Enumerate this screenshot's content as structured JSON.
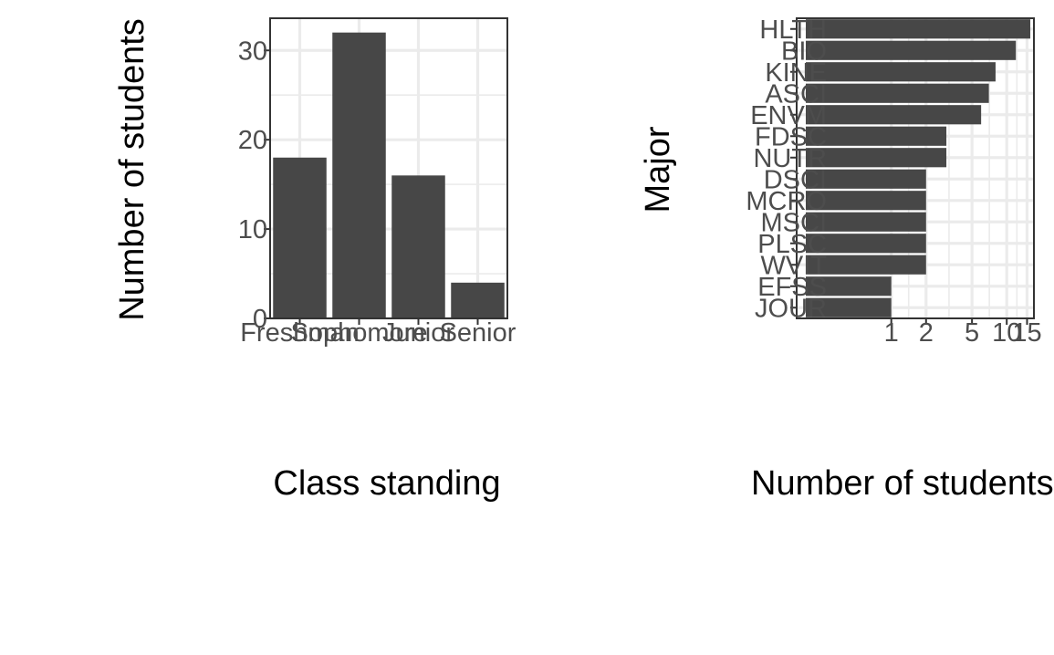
{
  "chart_data": [
    {
      "type": "bar",
      "orientation": "vertical",
      "categories": [
        "Freshman",
        "Sophomore",
        "Junior",
        "Senior"
      ],
      "values": [
        18,
        32,
        16,
        4
      ],
      "title": "",
      "xlabel": "Class standing",
      "ylabel": "Number of students",
      "ylim": [
        0,
        33.6
      ],
      "yticks": [
        0,
        10,
        20,
        30
      ],
      "y_tick_labels": [
        "0",
        "10",
        "20",
        "30"
      ],
      "grid": true,
      "bar_color": "#474747"
    },
    {
      "type": "bar",
      "orientation": "horizontal",
      "categories": [
        "HLTH",
        "BIO",
        "KINE",
        "ASCI",
        "ENVM",
        "FDSC",
        "NUTR",
        "DSCI",
        "MCRO",
        "MSCI",
        "PLSC",
        "WVIT",
        "EFSS",
        "JOUR"
      ],
      "values": [
        16,
        12,
        8,
        7,
        6,
        3,
        3,
        2,
        2,
        2,
        2,
        2,
        1,
        1
      ],
      "title": "",
      "xlabel": "Number of students",
      "ylabel": "Major",
      "x_scale": "log",
      "xticks": [
        1,
        2,
        5,
        10,
        15
      ],
      "x_tick_labels": [
        "1",
        "2",
        "5",
        "10",
        "15"
      ],
      "grid": true,
      "bar_color": "#474747"
    }
  ]
}
